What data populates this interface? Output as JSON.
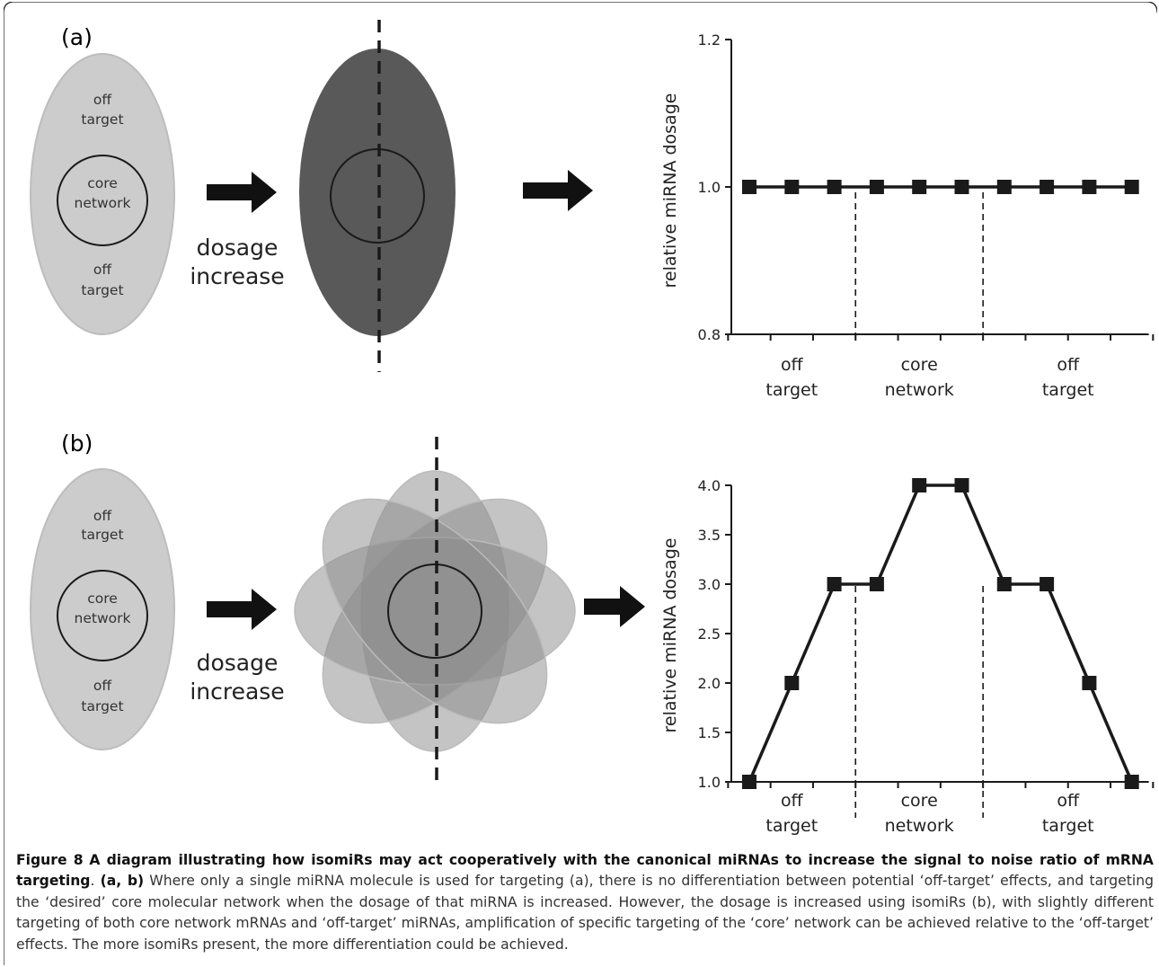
{
  "panels": {
    "a": {
      "label": "(a)",
      "ellipse_labels": {
        "off_target_top_1": "off",
        "off_target_top_2": "target",
        "core_1": "core",
        "core_2": "network",
        "off_target_bottom_1": "off",
        "off_target_bottom_2": "target"
      },
      "arrow_text_1": "dosage",
      "arrow_text_2": "increase"
    },
    "b": {
      "label": "(b)",
      "ellipse_labels": {
        "off_target_top_1": "off",
        "off_target_top_2": "target",
        "core_1": "core",
        "core_2": "network",
        "off_target_bottom_1": "off",
        "off_target_bottom_2": "target"
      },
      "arrow_text_1": "dosage",
      "arrow_text_2": "increase"
    }
  },
  "colors": {
    "light_ellipse": "#cccccc",
    "dark_ellipse": "#595959",
    "flower_petal": "#8a8a8a",
    "line": "#1a1a1a"
  },
  "chart_data": [
    {
      "type": "line",
      "panel": "a",
      "ylabel": "relative miRNA dosage",
      "yticks": [
        "1.2",
        "1.0",
        "0.8"
      ],
      "ylim": [
        0.8,
        1.2
      ],
      "x": [
        1,
        2,
        3,
        4,
        5,
        6,
        7,
        8,
        9,
        10
      ],
      "values": [
        1.0,
        1.0,
        1.0,
        1.0,
        1.0,
        1.0,
        1.0,
        1.0,
        1.0,
        1.0
      ],
      "groups": [
        {
          "line1": "off",
          "line2": "target"
        },
        {
          "line1": "core",
          "line2": "network"
        },
        {
          "line1": "off",
          "line2": "target"
        }
      ],
      "dividers_after_x": [
        3.5,
        6.5
      ],
      "marker": "square"
    },
    {
      "type": "line",
      "panel": "b",
      "ylabel": "relative miRNA dosage",
      "yticks": [
        "4.0",
        "3.5",
        "3.0",
        "2.5",
        "2.0",
        "1.5",
        "1.0"
      ],
      "ylim": [
        1.0,
        4.0
      ],
      "x": [
        1,
        2,
        3,
        4,
        5,
        6,
        7,
        8,
        9,
        10
      ],
      "values": [
        1.0,
        2.0,
        3.0,
        3.0,
        4.0,
        4.0,
        3.0,
        3.0,
        2.0,
        1.0
      ],
      "groups": [
        {
          "line1": "off",
          "line2": "target"
        },
        {
          "line1": "core",
          "line2": "network"
        },
        {
          "line1": "off",
          "line2": "target"
        }
      ],
      "dividers_after_x": [
        3.5,
        6.5
      ],
      "marker": "square"
    }
  ],
  "caption": {
    "figure_label": "Figure 8",
    "title": "A diagram illustrating how isomiRs may act cooperatively with the canonical miRNAs to increase the signal to noise ratio of mRNA targeting",
    "title_end": ".",
    "panels_label": "(a, b)",
    "body": "Where only a single miRNA molecule is used for targeting (a), there is no differentiation between potential ‘off-target’ effects, and targeting the ‘desired’ core molecular network when the dosage of that miRNA is increased. However, the dosage is increased using isomiRs (b), with slightly different targeting of both core network mRNAs and ‘off-target’ miRNAs, amplification of specific targeting of the ‘core’ network can be achieved relative to the ‘off-target’ effects. The more isomiRs present, the more differentiation could be achieved."
  }
}
